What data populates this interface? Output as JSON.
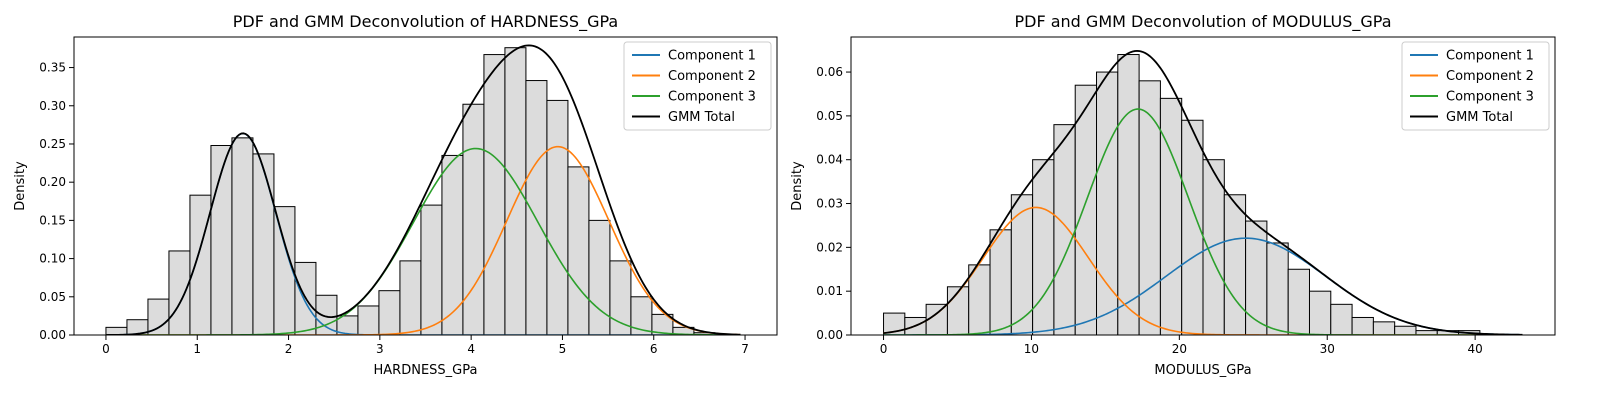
{
  "chart_data": [
    {
      "type": "histogram-with-gmm",
      "title": "PDF and GMM Deconvolution of HARDNESS_GPa",
      "xlabel": "HARDNESS_GPa",
      "ylabel": "Density",
      "xlim": [
        -0.35,
        7.35
      ],
      "ylim": [
        0,
        0.39
      ],
      "xticks": [
        0,
        1,
        2,
        3,
        4,
        5,
        6,
        7
      ],
      "yticks": [
        0.0,
        0.05,
        0.1,
        0.15,
        0.2,
        0.25,
        0.3,
        0.35
      ],
      "ytick_decimals": 2,
      "grid": false,
      "legend_position": "top-right",
      "histogram": {
        "bin_start": 0.0,
        "bin_width": 0.23,
        "values": [
          0.01,
          0.02,
          0.047,
          0.11,
          0.183,
          0.248,
          0.258,
          0.237,
          0.168,
          0.095,
          0.052,
          0.025,
          0.038,
          0.058,
          0.097,
          0.17,
          0.235,
          0.302,
          0.367,
          0.376,
          0.333,
          0.307,
          0.22,
          0.15,
          0.097,
          0.05,
          0.027,
          0.01,
          0.003,
          0.001
        ]
      },
      "components": [
        {
          "name": "Component 1",
          "color": "#1f77b4",
          "weight": 0.238,
          "mean": 1.5,
          "sd": 0.36
        },
        {
          "name": "Component 2",
          "color": "#ff7f0e",
          "weight": 0.346,
          "mean": 4.95,
          "sd": 0.56
        },
        {
          "name": "Component 3",
          "color": "#2ca02c",
          "weight": 0.416,
          "mean": 4.05,
          "sd": 0.68
        }
      ],
      "total": {
        "name": "GMM Total",
        "color": "#000000"
      },
      "curve_range": [
        0,
        6.95
      ]
    },
    {
      "type": "histogram-with-gmm",
      "title": "PDF and GMM Deconvolution of MODULUS_GPa",
      "xlabel": "MODULUS_GPa",
      "ylabel": "Density",
      "xlim": [
        -2.2,
        45.4
      ],
      "ylim": [
        0,
        0.068
      ],
      "xticks": [
        0,
        10,
        20,
        30,
        40
      ],
      "yticks": [
        0.0,
        0.01,
        0.02,
        0.03,
        0.04,
        0.05,
        0.06
      ],
      "ytick_decimals": 2,
      "grid": false,
      "legend_position": "top-right",
      "histogram": {
        "bin_start": 0.0,
        "bin_width": 1.44,
        "values": [
          0.005,
          0.004,
          0.007,
          0.011,
          0.016,
          0.024,
          0.032,
          0.04,
          0.048,
          0.057,
          0.06,
          0.064,
          0.058,
          0.054,
          0.049,
          0.04,
          0.032,
          0.026,
          0.021,
          0.015,
          0.01,
          0.007,
          0.004,
          0.003,
          0.002,
          0.001,
          0.001,
          0.001,
          0.0,
          0.0
        ]
      },
      "components": [
        {
          "name": "Component 1",
          "color": "#1f77b4",
          "weight": 0.299,
          "mean": 24.5,
          "sd": 5.4
        },
        {
          "name": "Component 2",
          "color": "#ff7f0e",
          "weight": 0.259,
          "mean": 10.3,
          "sd": 3.55
        },
        {
          "name": "Component 3",
          "color": "#2ca02c",
          "weight": 0.442,
          "mean": 17.2,
          "sd": 3.42
        }
      ],
      "total": {
        "name": "GMM Total",
        "color": "#000000"
      },
      "curve_range": [
        0,
        43.2
      ]
    }
  ]
}
